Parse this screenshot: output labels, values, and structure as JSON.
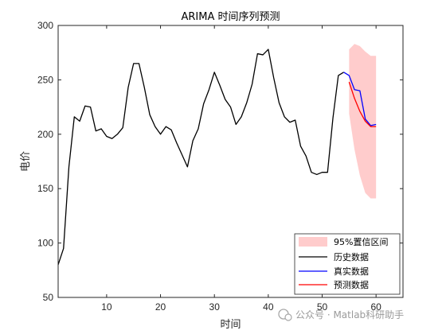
{
  "chart_data": {
    "type": "line",
    "title": "ARIMA 时间序列预测",
    "xlabel": "时间",
    "ylabel": "电价",
    "xlim": [
      1,
      65
    ],
    "ylim": [
      50,
      300
    ],
    "xticks": [
      10,
      20,
      30,
      40,
      50,
      60
    ],
    "yticks": [
      50,
      100,
      150,
      200,
      250,
      300
    ],
    "grid": false,
    "legend_position": "bottom-right",
    "legend": [
      "95%置信区间",
      "历史数据",
      "真实数据",
      "预测数据"
    ],
    "series": [
      {
        "name": "历史数据",
        "color": "#000000",
        "x": [
          1,
          2,
          3,
          4,
          5,
          6,
          7,
          8,
          9,
          10,
          11,
          12,
          13,
          14,
          15,
          16,
          17,
          18,
          19,
          20,
          21,
          22,
          23,
          24,
          25,
          26,
          27,
          28,
          29,
          30,
          31,
          32,
          33,
          34,
          35,
          36,
          37,
          38,
          39,
          40,
          41,
          42,
          43,
          44,
          45,
          46,
          47,
          48,
          49,
          50,
          51,
          52,
          53,
          54
        ],
        "values": [
          80,
          95,
          170,
          216,
          212,
          226,
          225,
          203,
          205,
          198,
          196,
          200,
          206,
          243,
          265,
          265,
          243,
          218,
          207,
          200,
          207,
          204,
          192,
          181,
          170,
          194,
          205,
          228,
          241,
          257,
          245,
          232,
          225,
          209,
          216,
          229,
          246,
          274,
          273,
          278,
          252,
          229,
          216,
          211,
          213,
          189,
          180,
          165,
          163,
          165,
          165,
          215,
          254,
          257
        ]
      },
      {
        "name": "真实数据",
        "color": "#0000ff",
        "x": [
          54,
          55,
          56,
          57,
          58,
          59,
          60
        ],
        "values": [
          257,
          254,
          241,
          240,
          214,
          208,
          209
        ]
      },
      {
        "name": "预测数据",
        "color": "#ff0000",
        "x": [
          55,
          56,
          57,
          58,
          59,
          60
        ],
        "values": [
          248,
          233,
          221,
          212,
          207,
          207
        ]
      }
    ],
    "confidence_band": {
      "name": "95%置信区间",
      "color": "#ffcccc",
      "x": [
        55,
        56,
        57,
        58,
        59,
        60
      ],
      "upper": [
        278,
        283,
        281,
        276,
        272,
        272
      ],
      "lower": [
        219,
        186,
        162,
        146,
        141,
        141
      ]
    }
  },
  "watermark": {
    "text": "公众号 · Matlab科研助手"
  }
}
